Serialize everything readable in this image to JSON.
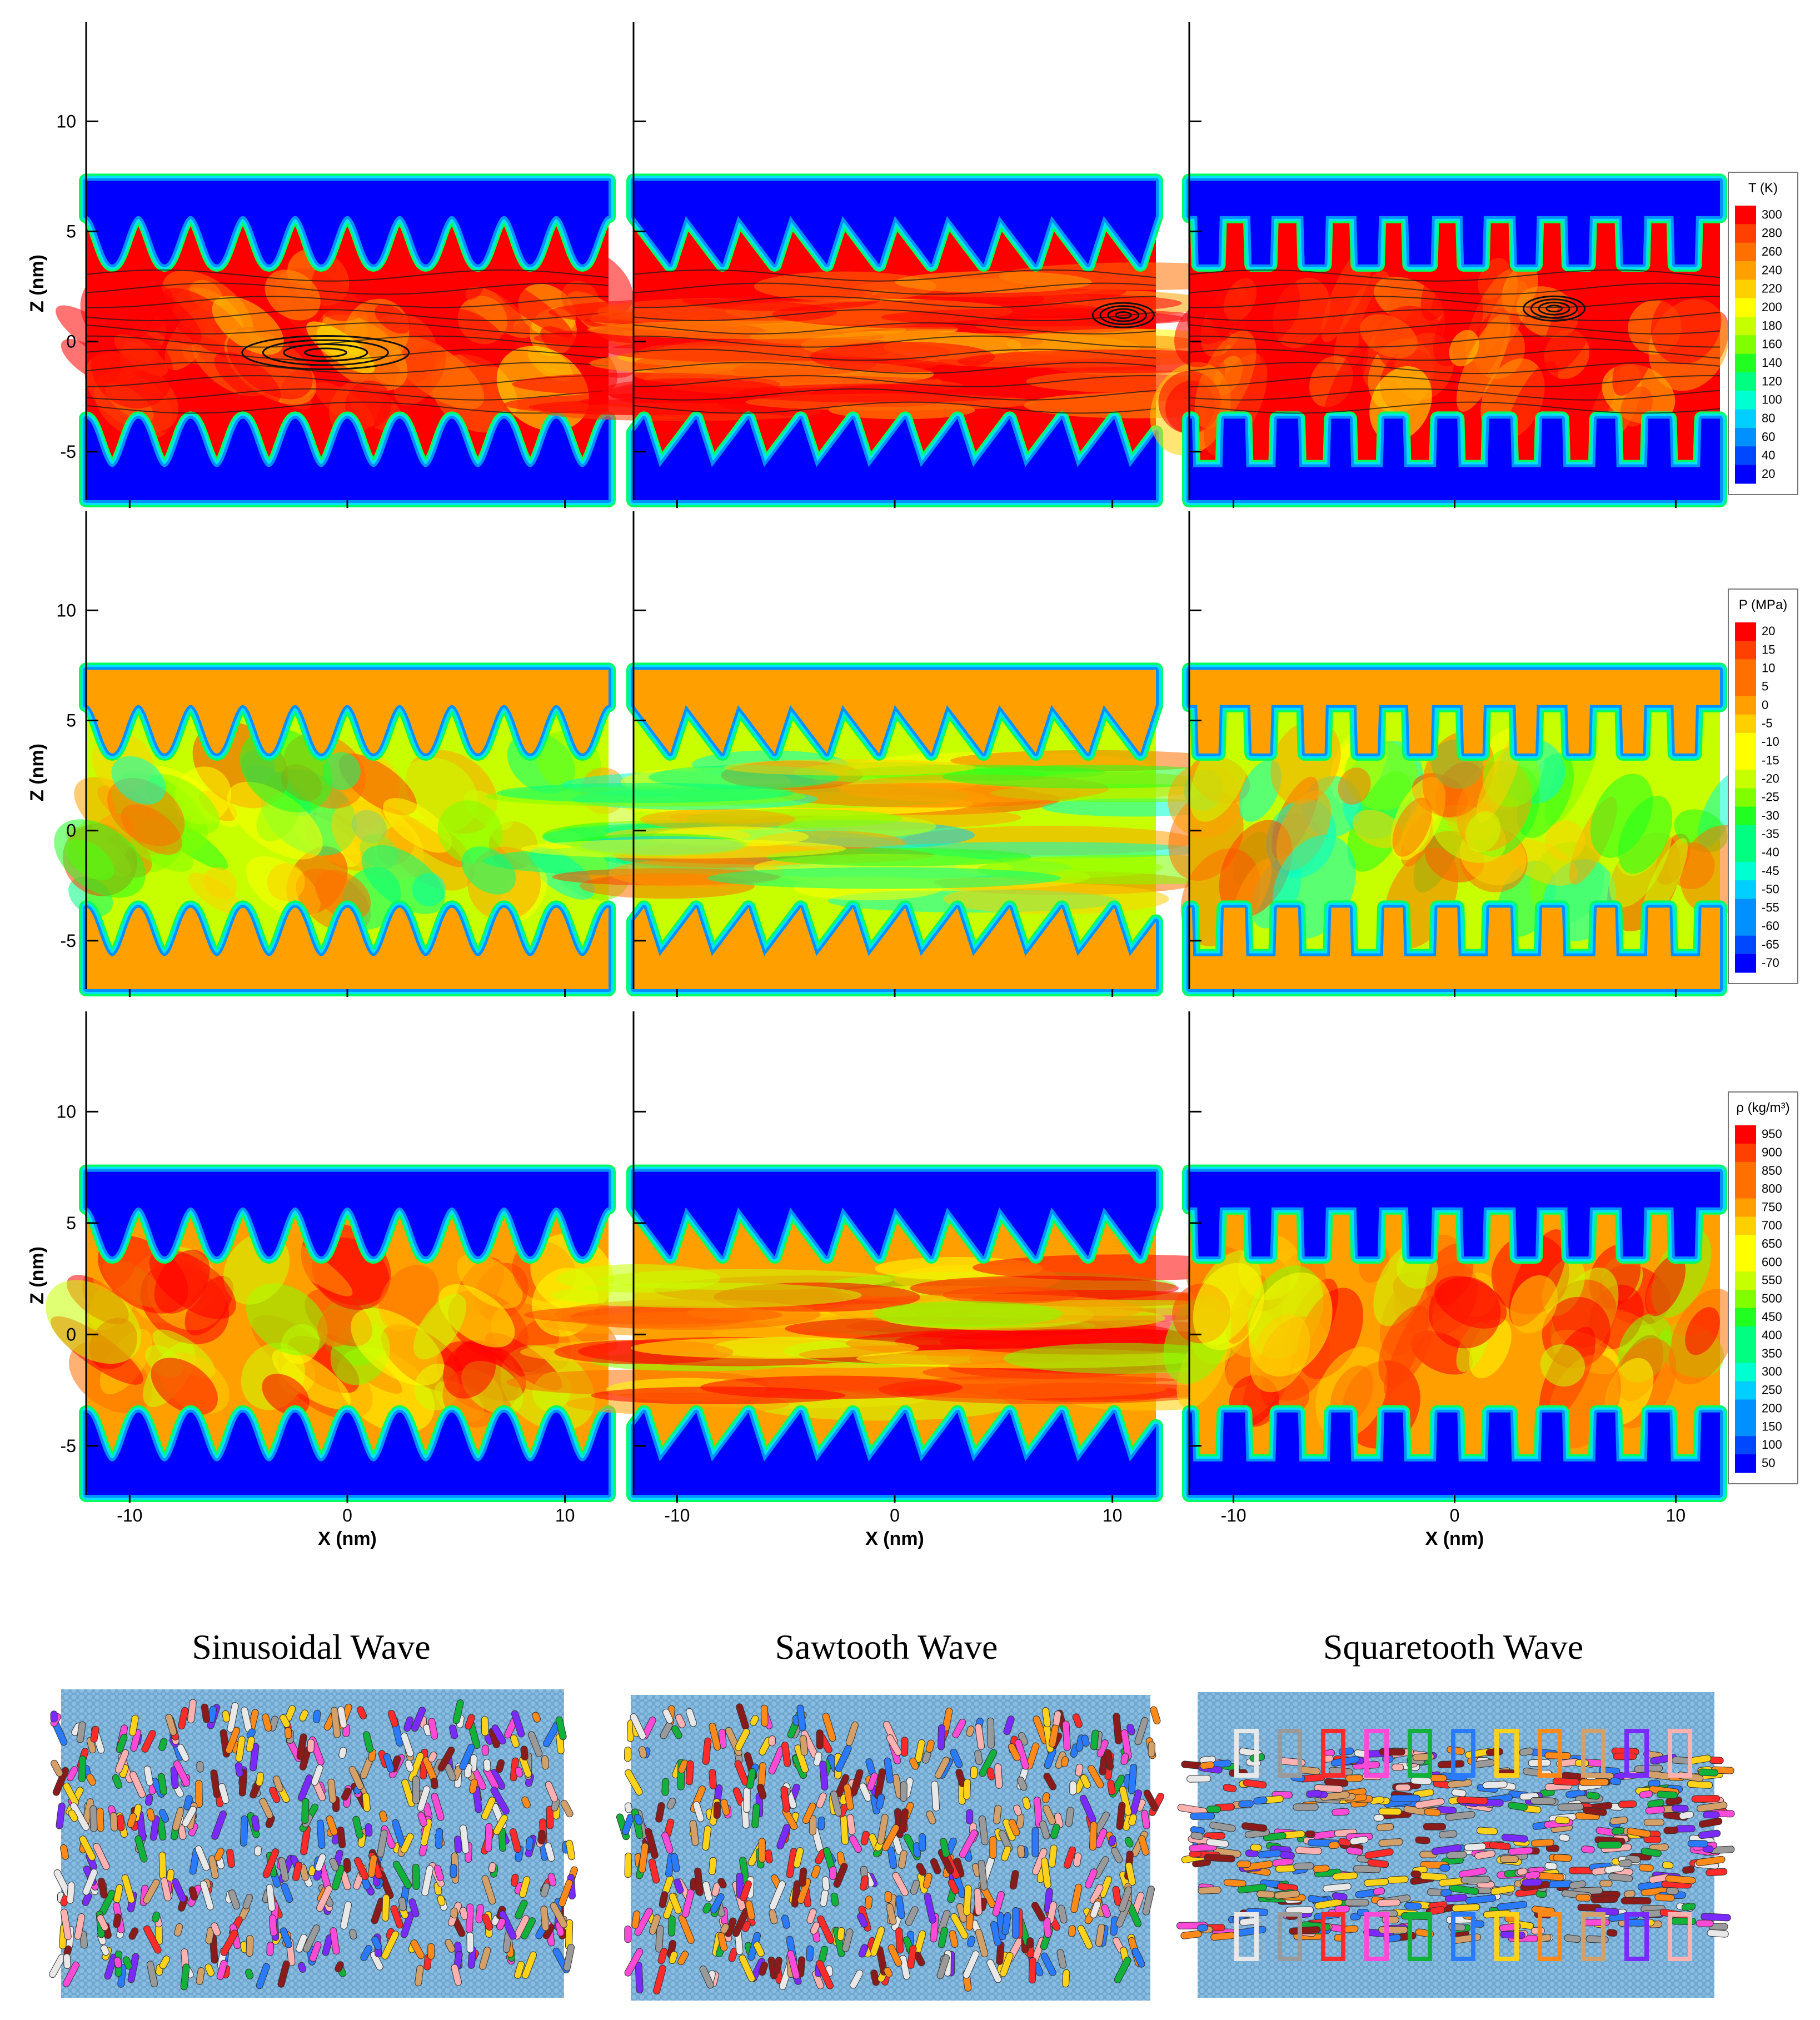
{
  "chart_data": {
    "type": "heatmap",
    "grid_columns": [
      "Sinusoidal Wave",
      "Sawtooth Wave",
      "Squaretooth Wave"
    ],
    "axes": {
      "xlabel": "X (nm)",
      "ylabel": "Z (nm)",
      "xlim": [
        -12,
        12
      ],
      "ylim": [
        -7.2,
        14.5
      ],
      "xticks": [
        -10,
        0,
        10
      ],
      "yticks": [
        -5,
        0,
        5,
        10
      ],
      "xtick_labels": [
        "-10",
        "0",
        "10"
      ],
      "ytick_labels": [
        "-5",
        "0",
        "5",
        "10"
      ]
    },
    "fields": [
      {
        "name": "temperature",
        "colorbar_title": "T (K)",
        "levels": [
          300,
          280,
          260,
          240,
          220,
          200,
          180,
          160,
          140,
          120,
          100,
          80,
          60,
          40,
          20
        ],
        "wall_value": 20,
        "fluid_value": 295,
        "streamlines": true,
        "vortex_centers": [
          {
            "x": -1,
            "z": -0.5
          },
          {
            "x": 10.5,
            "z": 1.2
          },
          {
            "x": 4.5,
            "z": 1.5
          }
        ]
      },
      {
        "name": "pressure",
        "colorbar_title": "P (MPa)",
        "levels": [
          20,
          15,
          10,
          5,
          0,
          -5,
          -10,
          -15,
          -20,
          -25,
          -30,
          -35,
          -40,
          -45,
          -50,
          -55,
          -60,
          -65,
          -70
        ],
        "wall_value": 0,
        "fluid_value": -20
      },
      {
        "name": "density",
        "colorbar_title": "ρ (kg/m³)",
        "levels": [
          950,
          900,
          850,
          800,
          750,
          700,
          650,
          600,
          550,
          500,
          450,
          400,
          350,
          300,
          250,
          200,
          150,
          100,
          50
        ],
        "wall_value": 50,
        "fluid_value": 780
      }
    ],
    "colormap": [
      "#0000ff",
      "#0048ff",
      "#0090ff",
      "#00cfff",
      "#00ffd0",
      "#00ff80",
      "#20ff20",
      "#80ff00",
      "#c8ff00",
      "#ffff00",
      "#ffd000",
      "#ffa000",
      "#ff7000",
      "#ff4000",
      "#ff0000"
    ],
    "geometry": {
      "channel_top_z": 7.3,
      "channel_bottom_z": -7.2,
      "upper_wall_tip_z": 5.7,
      "upper_wall_root_z": 3.5,
      "lower_wall_tip_z": -5.7,
      "lower_wall_root_z": -3.5,
      "corrugation_period_nm": 2.4,
      "corrugations_per_wall": 10
    },
    "molecule_colors": [
      "#e8e8e8",
      "#9a9a9a",
      "#ff2a2a",
      "#ff4ad8",
      "#12b23a",
      "#2a7aff",
      "#ffd21a",
      "#ff8a1a",
      "#d3a06a",
      "#7a2aff",
      "#ffb0b0",
      "#8b1a1a"
    ]
  }
}
